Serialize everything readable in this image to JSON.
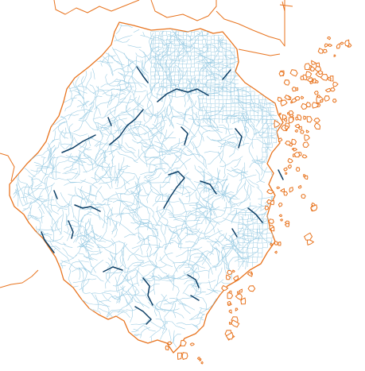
{
  "map": {
    "colors": {
      "background": "#ffffff",
      "province_fill": "#ffffff",
      "boundary": "#e8741f",
      "river_minor": "#9dcde4",
      "river_major": "#0d3f66",
      "water_body": "#1e5f8c"
    },
    "layers": [
      "province-boundary",
      "neighbor-boundaries",
      "coastal-islands",
      "river-network",
      "major-rivers"
    ]
  }
}
